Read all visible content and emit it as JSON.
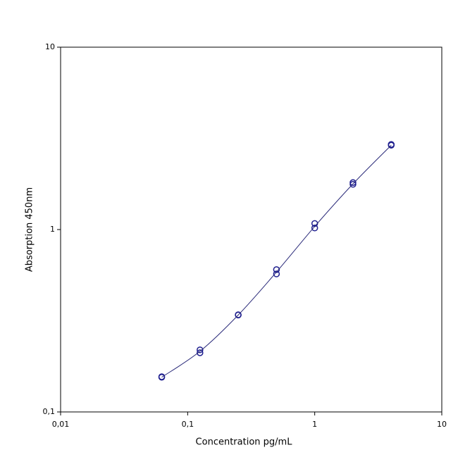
{
  "chart_data": {
    "type": "scatter",
    "xlabel": "Concentration pg/mL",
    "ylabel": "Absorption 450nm",
    "xscale": "log",
    "yscale": "log",
    "xlim": [
      0.01,
      10
    ],
    "ylim": [
      0.1,
      10
    ],
    "xticks": [
      {
        "value": 0.01,
        "label": "0,01"
      },
      {
        "value": 0.1,
        "label": "0,1"
      },
      1,
      10
    ],
    "yticks": [
      {
        "value": 0.1,
        "label": "0,1"
      },
      1,
      10
    ],
    "grid": false,
    "series": [
      {
        "color": "#1f1f8f",
        "marker": "circle",
        "x": [
          0.0625,
          0.0625,
          0.125,
          0.125,
          0.25,
          0.25,
          0.5,
          0.5,
          1,
          1,
          2,
          2,
          4,
          4
        ],
        "values": [
          0.156,
          0.155,
          0.219,
          0.211,
          0.341,
          0.34,
          0.603,
          0.571,
          1.08,
          1.02,
          1.81,
          1.77,
          2.93,
          2.9
        ]
      },
      {
        "color": "#2b2b7a",
        "marker": "line",
        "x": [
          0.0625,
          0.125,
          0.25,
          0.5,
          1,
          2,
          4
        ],
        "values": [
          0.155,
          0.215,
          0.34,
          0.585,
          1.04,
          1.78,
          2.9
        ]
      }
    ]
  }
}
